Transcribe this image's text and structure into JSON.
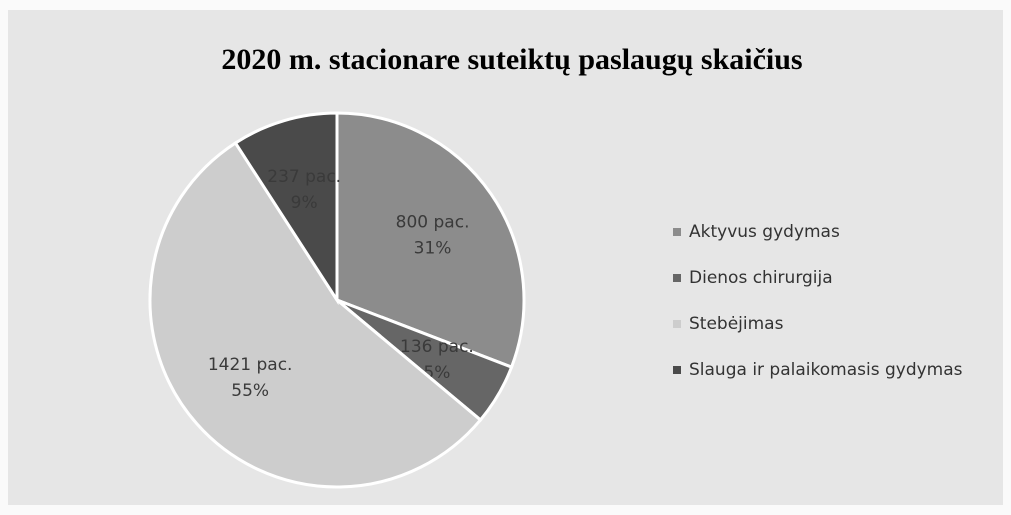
{
  "chart_data": {
    "type": "pie",
    "title": "2020 m. stacionare suteiktų paslaugų skaičius",
    "categories": [
      "Aktyvus gydymas",
      "Dienos chirurgija",
      "Stebėjimas",
      "Slauga ir palaikomasis gydymas"
    ],
    "values": [
      800,
      136,
      1421,
      237
    ],
    "value_labels": [
      "800 pac.",
      "136 pac.",
      "1421 pac.",
      "237 pac."
    ],
    "percents": [
      31,
      5,
      55,
      9
    ],
    "percent_labels": [
      "31%",
      "5%",
      "55%",
      "9%"
    ],
    "colors": [
      "#8c8c8c",
      "#666666",
      "#cdcdcd",
      "#4a4a4a"
    ],
    "legend": "right"
  }
}
